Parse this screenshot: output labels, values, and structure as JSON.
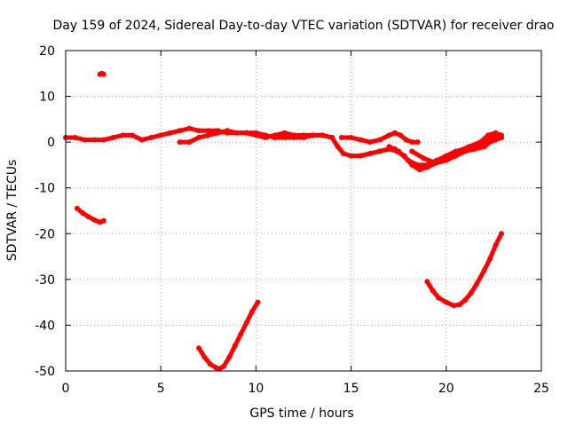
{
  "chart_data": {
    "type": "scatter",
    "title": "Day 159 of 2024, Sidereal Day-to-day VTEC variation (SDTVAR) for receiver drao",
    "xlabel": "GPS time / hours",
    "ylabel": "SDTVAR / TECUs",
    "xlim": [
      0,
      25
    ],
    "ylim": [
      -50,
      20
    ],
    "xticks": [
      0,
      5,
      10,
      15,
      20,
      25
    ],
    "yticks": [
      -50,
      -40,
      -30,
      -20,
      -10,
      0,
      10,
      20
    ],
    "xtick_labels": [
      "0",
      "5",
      "10",
      "15",
      "20",
      "25"
    ],
    "ytick_labels": [
      "-50",
      "-40",
      "-30",
      "-20",
      "-10",
      "0",
      "10",
      "20"
    ],
    "grid": true,
    "marker_color": "#ff0000",
    "series": [
      {
        "name": "main-band-a",
        "x": [
          0,
          0.5,
          1,
          1.5,
          2,
          2.5,
          3,
          3.5,
          4,
          4.5,
          5,
          5.5,
          6,
          6.5,
          7,
          7.5,
          8,
          8.5,
          9,
          9.5,
          10,
          10.5,
          11,
          11.5,
          12,
          12.5,
          13,
          13.5,
          14,
          14.3,
          14.6,
          15,
          15.5,
          16,
          16.5,
          17,
          17.3
        ],
        "y": [
          1,
          1,
          0.5,
          0.5,
          0.5,
          1,
          1.5,
          1.5,
          0.5,
          1,
          1.5,
          2,
          2.5,
          3,
          2.5,
          2.5,
          2.5,
          2,
          2,
          2,
          1.5,
          1,
          1.5,
          2,
          1.5,
          1.5,
          1.5,
          1.5,
          1,
          -1,
          -2.5,
          -3,
          -3,
          -2.5,
          -2,
          -1.5,
          -1.5
        ]
      },
      {
        "name": "main-band-b",
        "x": [
          6,
          6.5,
          7,
          7.5,
          8,
          8.5,
          9,
          9.5,
          10,
          10.5,
          11,
          11.5,
          12,
          12.5,
          13,
          13.5,
          14
        ],
        "y": [
          0,
          0,
          1,
          1.5,
          2,
          2.5,
          2,
          2,
          2,
          1.5,
          1,
          1,
          1,
          1,
          1.5,
          1.5,
          1
        ]
      },
      {
        "name": "evening-arc-a",
        "x": [
          14.5,
          15,
          15.5,
          16,
          16.5,
          17,
          17.3,
          17.6,
          17.9,
          18.2,
          18.5
        ],
        "y": [
          1,
          1,
          0.5,
          0,
          0.5,
          1.5,
          2,
          1.5,
          0.5,
          0,
          0
        ]
      },
      {
        "name": "evening-arc-b",
        "x": [
          15.5,
          16,
          16.5,
          17,
          17.4,
          17.8,
          18.2,
          18.6,
          19,
          19.5,
          20,
          20.5,
          21,
          21.5,
          22,
          22.3,
          22.6,
          22.9
        ],
        "y": [
          -3,
          -2.5,
          -2,
          -1.5,
          -2,
          -3,
          -5,
          -6,
          -5.5,
          -4.5,
          -4,
          -3,
          -2,
          -1.5,
          -1,
          0,
          0.5,
          1
        ]
      },
      {
        "name": "evening-arc-c",
        "x": [
          17,
          17.5,
          18,
          18.5,
          19,
          19.5,
          20,
          20.5,
          21,
          21.5,
          22,
          22.5,
          22.9
        ],
        "y": [
          -1,
          -2,
          -4,
          -5,
          -5,
          -4,
          -3,
          -2,
          -1.5,
          -1,
          0,
          1,
          1
        ]
      },
      {
        "name": "evening-arc-d",
        "x": [
          18.2,
          18.8,
          19.4,
          20,
          20.6,
          21.2,
          21.8,
          22.2,
          22.6,
          22.9
        ],
        "y": [
          -2,
          -3.5,
          -4.5,
          -3.5,
          -2,
          -1,
          0,
          1.5,
          2,
          1.5
        ]
      },
      {
        "name": "outlier-dot",
        "x": [
          1.8,
          1.9,
          2.0
        ],
        "y": [
          14.8,
          15,
          14.8
        ]
      },
      {
        "name": "early-segment",
        "x": [
          0.6,
          0.9,
          1.2,
          1.5,
          1.8,
          2.0
        ],
        "y": [
          -14.5,
          -15.5,
          -16.3,
          -17,
          -17.5,
          -17.2
        ]
      },
      {
        "name": "u-arc-low",
        "x": [
          7.0,
          7.3,
          7.6,
          7.9,
          8.1,
          8.3,
          8.6,
          8.9,
          9.2,
          9.5,
          9.8,
          10.1
        ],
        "y": [
          -45,
          -47,
          -48.5,
          -49.3,
          -49.5,
          -49,
          -47,
          -44.5,
          -42,
          -39.5,
          -37,
          -35
        ]
      },
      {
        "name": "u-arc-right",
        "x": [
          19.0,
          19.3,
          19.6,
          20.0,
          20.4,
          20.7,
          21.0,
          21.3,
          21.6,
          22.0,
          22.3,
          22.6,
          22.9
        ],
        "y": [
          -30.5,
          -32.5,
          -34,
          -35,
          -35.7,
          -35.5,
          -34.5,
          -33,
          -31,
          -28,
          -25.5,
          -22.5,
          -20
        ]
      }
    ]
  }
}
